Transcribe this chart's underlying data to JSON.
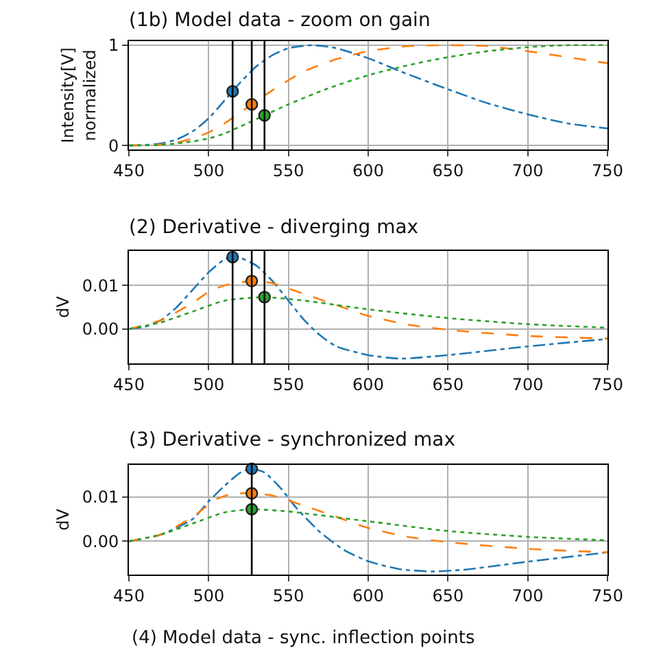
{
  "chart_data": [
    {
      "type": "line",
      "title": "(1b) Model data - zoom on gain",
      "ylabel": "Intensity[V]\nnormalized",
      "xlim": [
        450,
        750
      ],
      "ylim": [
        -0.04,
        1.04
      ],
      "xticks": [
        450,
        500,
        550,
        600,
        650,
        700,
        750
      ],
      "yticks": [
        0,
        1
      ],
      "grid": true,
      "ref_lines": [
        {
          "axis": "x",
          "value": 515
        },
        {
          "axis": "x",
          "value": 527
        },
        {
          "axis": "x",
          "value": 535
        }
      ],
      "series": [
        {
          "color": "#1f77b4",
          "line_style": "dashdot",
          "marker": "none",
          "x": [
            450,
            460,
            470,
            480,
            490,
            500,
            510,
            515,
            520,
            530,
            540,
            550,
            565,
            580,
            600,
            620,
            650,
            675,
            700,
            725,
            750
          ],
          "values": [
            0,
            0.005,
            0.02,
            0.06,
            0.14,
            0.27,
            0.45,
            0.54,
            0.63,
            0.79,
            0.9,
            0.97,
            1.0,
            0.97,
            0.87,
            0.74,
            0.56,
            0.42,
            0.31,
            0.22,
            0.17
          ]
        },
        {
          "color": "#ff7f0e",
          "line_style": "dashed",
          "marker": "none",
          "x": [
            450,
            470,
            480,
            490,
            500,
            510,
            520,
            527,
            540,
            550,
            560,
            580,
            600,
            625,
            650,
            675,
            700,
            725,
            750
          ],
          "values": [
            0,
            0.01,
            0.03,
            0.07,
            0.13,
            0.22,
            0.33,
            0.41,
            0.55,
            0.65,
            0.74,
            0.86,
            0.94,
            0.99,
            1.0,
            0.99,
            0.94,
            0.88,
            0.82
          ]
        },
        {
          "color": "#2ca02c",
          "line_style": "dotted",
          "marker": "none",
          "x": [
            450,
            470,
            490,
            500,
            510,
            520,
            535,
            550,
            575,
            600,
            625,
            650,
            675,
            700,
            725,
            750
          ],
          "values": [
            0,
            0.005,
            0.04,
            0.07,
            0.12,
            0.19,
            0.3,
            0.41,
            0.57,
            0.7,
            0.8,
            0.88,
            0.94,
            0.98,
            1.0,
            1.0
          ]
        },
        {
          "type": "scatter",
          "color": "#1f77b4",
          "marker": "circle",
          "x": [
            515
          ],
          "values": [
            0.54
          ]
        },
        {
          "type": "scatter",
          "color": "#ff7f0e",
          "marker": "circle",
          "x": [
            527
          ],
          "values": [
            0.41
          ]
        },
        {
          "type": "scatter",
          "color": "#2ca02c",
          "marker": "circle",
          "x": [
            535
          ],
          "values": [
            0.3
          ]
        }
      ]
    },
    {
      "type": "line",
      "title": "(2) Derivative - diverging max",
      "ylabel": "dV",
      "xlim": [
        450,
        750
      ],
      "ylim": [
        -0.0079,
        0.0179
      ],
      "xticks": [
        450,
        500,
        550,
        600,
        650,
        700,
        750
      ],
      "yticks": [
        {
          "value": 0,
          "label": "0.00"
        },
        0.01
      ],
      "grid": true,
      "ref_lines": [
        {
          "axis": "x",
          "value": 515
        },
        {
          "axis": "x",
          "value": 527
        },
        {
          "axis": "x",
          "value": 535
        }
      ],
      "series": [
        {
          "color": "#1f77b4",
          "line_style": "dashdot",
          "marker": "none",
          "x": [
            450,
            460,
            470,
            480,
            490,
            500,
            510,
            515,
            520,
            530,
            540,
            550,
            560,
            570,
            580,
            600,
            620,
            650,
            700,
            750
          ],
          "values": [
            0,
            0.0005,
            0.002,
            0.005,
            0.009,
            0.013,
            0.016,
            0.0165,
            0.0163,
            0.0145,
            0.011,
            0.0065,
            0.002,
            -0.0015,
            -0.004,
            -0.006,
            -0.0068,
            -0.006,
            -0.004,
            -0.0023
          ]
        },
        {
          "color": "#ff7f0e",
          "line_style": "dashed",
          "marker": "none",
          "x": [
            450,
            470,
            490,
            500,
            510,
            527,
            540,
            560,
            580,
            600,
            625,
            650,
            700,
            750
          ],
          "values": [
            0,
            0.002,
            0.006,
            0.0085,
            0.01,
            0.011,
            0.0105,
            0.008,
            0.0055,
            0.003,
            0.001,
            -0.0002,
            -0.0016,
            -0.0022
          ]
        },
        {
          "color": "#2ca02c",
          "line_style": "dotted",
          "marker": "none",
          "x": [
            450,
            470,
            490,
            510,
            535,
            560,
            600,
            650,
            700,
            750
          ],
          "values": [
            0,
            0.0015,
            0.004,
            0.0065,
            0.0073,
            0.0065,
            0.0045,
            0.0025,
            0.0011,
            0.0003
          ]
        },
        {
          "type": "scatter",
          "color": "#1f77b4",
          "marker": "circle",
          "x": [
            515
          ],
          "values": [
            0.0165
          ]
        },
        {
          "type": "scatter",
          "color": "#ff7f0e",
          "marker": "circle",
          "x": [
            527
          ],
          "values": [
            0.011
          ]
        },
        {
          "type": "scatter",
          "color": "#2ca02c",
          "marker": "circle",
          "x": [
            535
          ],
          "values": [
            0.0073
          ]
        }
      ]
    },
    {
      "type": "line",
      "title": "(3) Derivative - synchronized max",
      "ylabel": "dV",
      "xlim": [
        450,
        750
      ],
      "ylim": [
        -0.0075,
        0.0172
      ],
      "xticks": [
        450,
        500,
        550,
        600,
        650,
        700,
        750
      ],
      "yticks": [
        {
          "value": 0,
          "label": "0.00"
        },
        0.01
      ],
      "grid": true,
      "ref_lines": [
        {
          "axis": "x",
          "value": 527
        }
      ],
      "annotations": [
        "(4) Model data - sync. inflection points"
      ],
      "series": [
        {
          "color": "#1f77b4",
          "line_style": "dashdot",
          "marker": "none",
          "x": [
            450,
            470,
            490,
            500,
            510,
            520,
            527,
            535,
            545,
            555,
            570,
            585,
            600,
            620,
            640,
            660,
            700,
            750
          ],
          "values": [
            0,
            0.0015,
            0.005,
            0.009,
            0.0125,
            0.0155,
            0.0163,
            0.0155,
            0.012,
            0.0075,
            0.002,
            -0.002,
            -0.0045,
            -0.0063,
            -0.0068,
            -0.0064,
            -0.0046,
            -0.0025
          ]
        },
        {
          "color": "#ff7f0e",
          "line_style": "dashed",
          "marker": "none",
          "x": [
            450,
            470,
            490,
            505,
            515,
            527,
            540,
            560,
            580,
            600,
            625,
            650,
            700,
            750
          ],
          "values": [
            0,
            0.0015,
            0.0055,
            0.0095,
            0.0107,
            0.0108,
            0.0103,
            0.008,
            0.0055,
            0.003,
            0.001,
            -0.0002,
            -0.0017,
            -0.0025
          ]
        },
        {
          "color": "#2ca02c",
          "line_style": "dotted",
          "marker": "none",
          "x": [
            450,
            470,
            490,
            510,
            527,
            550,
            600,
            650,
            700,
            750
          ],
          "values": [
            0,
            0.0015,
            0.004,
            0.0065,
            0.0072,
            0.0067,
            0.0045,
            0.0023,
            0.001,
            0.0002
          ]
        },
        {
          "type": "scatter",
          "color": "#1f77b4",
          "marker": "circle",
          "x": [
            527
          ],
          "values": [
            0.0163
          ]
        },
        {
          "type": "scatter",
          "color": "#ff7f0e",
          "marker": "circle",
          "x": [
            527
          ],
          "values": [
            0.0108
          ]
        },
        {
          "type": "scatter",
          "color": "#2ca02c",
          "marker": "circle",
          "x": [
            527
          ],
          "values": [
            0.0072
          ]
        }
      ]
    }
  ]
}
